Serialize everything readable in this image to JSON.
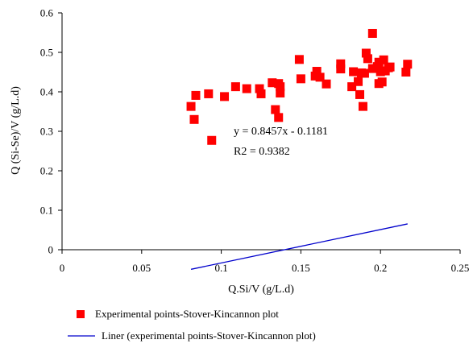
{
  "chart_data": {
    "type": "scatter",
    "xlabel": "Q.Si/V (g/L.d)",
    "ylabel": "Q (Si-Se)/V  (g/L.d)",
    "xlim": [
      0,
      0.25
    ],
    "ylim": [
      0,
      0.6
    ],
    "x_ticks": [
      0,
      0.05,
      0.1,
      0.15,
      0.2,
      0.25
    ],
    "x_tick_labels": [
      "0",
      "0.05",
      "0.1",
      "0.15",
      "0.2",
      "0.25"
    ],
    "y_ticks": [
      0,
      0.1,
      0.2,
      0.3,
      0.4,
      0.5,
      0.6
    ],
    "y_tick_labels": [
      "0",
      "0.1",
      "0.2",
      "0.3",
      "0.4",
      "0.5",
      "0.6"
    ],
    "grid": false,
    "legend_position": "bottom",
    "annotations": {
      "equation": "y = 0.8457x - 0.1181",
      "r2": "R2 = 0.9382"
    },
    "series": [
      {
        "name": "Experimental points-Stover-Kincannon plot",
        "kind": "marker",
        "marker": "square",
        "color": "#ff0000",
        "points": [
          [
            0.081,
            0.363
          ],
          [
            0.083,
            0.33
          ],
          [
            0.084,
            0.391
          ],
          [
            0.092,
            0.395
          ],
          [
            0.094,
            0.277
          ],
          [
            0.102,
            0.388
          ],
          [
            0.109,
            0.413
          ],
          [
            0.116,
            0.408
          ],
          [
            0.124,
            0.408
          ],
          [
            0.125,
            0.395
          ],
          [
            0.132,
            0.423
          ],
          [
            0.134,
            0.355
          ],
          [
            0.136,
            0.421
          ],
          [
            0.136,
            0.335
          ],
          [
            0.137,
            0.397
          ],
          [
            0.137,
            0.413
          ],
          [
            0.149,
            0.482
          ],
          [
            0.15,
            0.433
          ],
          [
            0.159,
            0.44
          ],
          [
            0.16,
            0.452
          ],
          [
            0.162,
            0.437
          ],
          [
            0.166,
            0.42
          ],
          [
            0.175,
            0.471
          ],
          [
            0.175,
            0.458
          ],
          [
            0.182,
            0.413
          ],
          [
            0.183,
            0.451
          ],
          [
            0.186,
            0.426
          ],
          [
            0.187,
            0.393
          ],
          [
            0.188,
            0.448
          ],
          [
            0.189,
            0.363
          ],
          [
            0.19,
            0.447
          ],
          [
            0.191,
            0.498
          ],
          [
            0.192,
            0.484
          ],
          [
            0.195,
            0.548
          ],
          [
            0.195,
            0.459
          ],
          [
            0.198,
            0.464
          ],
          [
            0.199,
            0.475
          ],
          [
            0.199,
            0.421
          ],
          [
            0.2,
            0.451
          ],
          [
            0.201,
            0.425
          ],
          [
            0.202,
            0.481
          ],
          [
            0.203,
            0.453
          ],
          [
            0.205,
            0.461
          ],
          [
            0.206,
            0.463
          ],
          [
            0.216,
            0.45
          ],
          [
            0.217,
            0.47
          ]
        ]
      },
      {
        "name": "Liner (experimental points-Stover-Kincannon plot)",
        "kind": "line",
        "color": "#0000cc",
        "x": [
          0.081,
          0.217
        ],
        "slope": 0.8457,
        "intercept": -0.1181
      }
    ]
  }
}
